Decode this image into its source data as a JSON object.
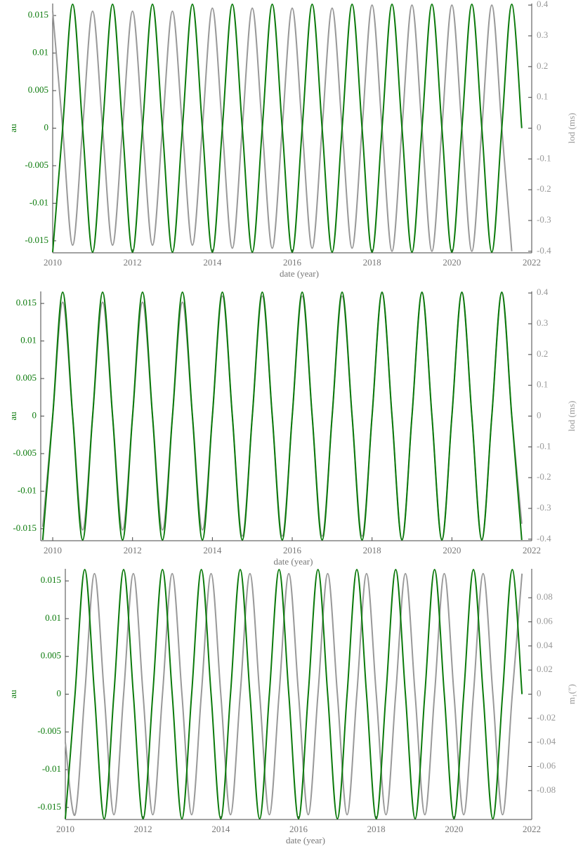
{
  "chart_data": [
    {
      "type": "line",
      "xlabel": "date (year)",
      "ylabel": "au",
      "y2label": "lod (ms)",
      "xlim": [
        2010,
        2022
      ],
      "xticks": [
        2010,
        2012,
        2014,
        2016,
        2018,
        2020,
        2022
      ],
      "ylim": [
        -0.0166,
        0.0166
      ],
      "yticks": [
        -0.015,
        -0.01,
        -0.005,
        0,
        0.005,
        0.01,
        0.015
      ],
      "y2lim": [
        -0.405,
        0.405
      ],
      "y2ticks": [
        -0.4,
        -0.3,
        -0.2,
        -0.1,
        0,
        0.1,
        0.2,
        0.3,
        0.4
      ],
      "x": [
        2010,
        2010.25,
        2010.5,
        2010.75,
        2011,
        2011.25,
        2011.5,
        2011.75,
        2012,
        2012.25,
        2012.5,
        2012.75,
        2013,
        2013.25,
        2013.5,
        2013.75,
        2014,
        2014.25,
        2014.5,
        2014.75,
        2015,
        2015.25,
        2015.5,
        2015.75,
        2016,
        2016.25,
        2016.5,
        2016.75,
        2017,
        2017.25,
        2017.5,
        2017.75,
        2018,
        2018.25,
        2018.5,
        2018.75,
        2019,
        2019.25,
        2019.5,
        2019.75,
        2020,
        2020.25,
        2020.5,
        2020.75,
        2021,
        2021.25,
        2021.5,
        2021.75
      ],
      "series": [
        {
          "color": "#0b7a0b",
          "values": [
            -0.0165,
            0,
            0.0165,
            0,
            -0.0165,
            0,
            0.0165,
            0,
            -0.0165,
            0,
            0.0165,
            0,
            -0.0165,
            0,
            0.0165,
            0,
            -0.0165,
            0,
            0.0165,
            0,
            -0.0165,
            0,
            0.0165,
            0,
            -0.0165,
            0,
            0.0165,
            0,
            -0.0165,
            0,
            0.0165,
            0,
            -0.0165,
            0,
            0.0165,
            0,
            -0.0165,
            0,
            0.0165,
            0,
            -0.0165,
            0,
            0.0165,
            0,
            -0.0165,
            0,
            0.0165,
            0
          ]
        },
        {
          "color": "#999999",
          "axis": "y2",
          "values": [
            0.38,
            0,
            -0.38,
            0,
            0.38,
            0,
            -0.38,
            0,
            0.38,
            0,
            -0.38,
            0,
            0.38,
            0,
            -0.38,
            0,
            0.39,
            0,
            -0.39,
            0,
            0.39,
            0,
            -0.39,
            0,
            0.39,
            0,
            -0.39,
            0,
            0.39,
            0,
            -0.39,
            0,
            0.4,
            0,
            -0.4,
            0,
            0.4,
            0,
            -0.4,
            0,
            0.4,
            0,
            -0.4,
            0,
            0.4,
            0,
            -0.4,
            null
          ]
        }
      ]
    },
    {
      "type": "line",
      "xlabel": "date (year)",
      "ylabel": "au",
      "y2label": "lod (ms)",
      "xlim": [
        2009.7,
        2022
      ],
      "xticks": [
        2010,
        2012,
        2014,
        2016,
        2018,
        2020,
        2022
      ],
      "ylim": [
        -0.0166,
        0.0166
      ],
      "yticks": [
        -0.015,
        -0.01,
        -0.005,
        0,
        0.005,
        0.01,
        0.015
      ],
      "y2lim": [
        -0.405,
        0.405
      ],
      "y2ticks": [
        -0.4,
        -0.3,
        -0.2,
        -0.1,
        0,
        0.1,
        0.2,
        0.3,
        0.4
      ],
      "x": [
        2009.75,
        2010,
        2010.25,
        2010.5,
        2010.75,
        2011,
        2011.25,
        2011.5,
        2011.75,
        2012,
        2012.25,
        2012.5,
        2012.75,
        2013,
        2013.25,
        2013.5,
        2013.75,
        2014,
        2014.25,
        2014.5,
        2014.75,
        2015,
        2015.25,
        2015.5,
        2015.75,
        2016,
        2016.25,
        2016.5,
        2016.75,
        2017,
        2017.25,
        2017.5,
        2017.75,
        2018,
        2018.25,
        2018.5,
        2018.75,
        2019,
        2019.25,
        2019.5,
        2019.75,
        2020,
        2020.25,
        2020.5,
        2020.75,
        2021,
        2021.25,
        2021.5,
        2021.75
      ],
      "series": [
        {
          "color": "#0b7a0b",
          "values": [
            -0.0165,
            0,
            0.0165,
            0,
            -0.0165,
            0,
            0.0165,
            0,
            -0.0165,
            0,
            0.0165,
            0,
            -0.0165,
            0,
            0.0165,
            0,
            -0.0165,
            0,
            0.0165,
            0,
            -0.0165,
            0,
            0.0165,
            0,
            -0.0165,
            0,
            0.0165,
            0,
            -0.0165,
            0,
            0.0165,
            0,
            -0.0165,
            0,
            0.0165,
            0,
            -0.0165,
            0,
            0.0165,
            0,
            -0.0165,
            0,
            0.0165,
            0,
            -0.0165,
            0,
            0.0165,
            0,
            -0.0165
          ]
        },
        {
          "color": "#999999",
          "axis": "y2",
          "values": [
            -0.36,
            0,
            0.37,
            0,
            -0.37,
            0,
            0.37,
            0,
            -0.37,
            0,
            0.37,
            0,
            -0.37,
            0,
            0.37,
            0,
            -0.37,
            0,
            0.39,
            0,
            -0.39,
            0,
            0.39,
            0,
            -0.39,
            0,
            0.39,
            0,
            -0.39,
            0,
            0.39,
            0,
            -0.39,
            0,
            0.4,
            0,
            -0.4,
            0,
            0.4,
            0,
            -0.4,
            0,
            0.4,
            0,
            -0.4,
            0,
            0.4,
            0,
            -0.35
          ]
        }
      ]
    },
    {
      "type": "line",
      "xlabel": "date (year)",
      "ylabel": "au",
      "y2label": "m₁(″)",
      "xlim": [
        2010,
        2022
      ],
      "xticks": [
        2010,
        2012,
        2014,
        2016,
        2018,
        2020,
        2022
      ],
      "ylim": [
        -0.0166,
        0.0166
      ],
      "yticks": [
        -0.015,
        -0.01,
        -0.005,
        0,
        0.005,
        0.01,
        0.015
      ],
      "y2lim": [
        -0.104,
        0.104
      ],
      "y2ticks": [
        -0.08,
        -0.06,
        -0.04,
        -0.02,
        0,
        0.02,
        0.04,
        0.06,
        0.08
      ],
      "x": [
        2010,
        2010.25,
        2010.5,
        2010.75,
        2011,
        2011.25,
        2011.5,
        2011.75,
        2012,
        2012.25,
        2012.5,
        2012.75,
        2013,
        2013.25,
        2013.5,
        2013.75,
        2014,
        2014.25,
        2014.5,
        2014.75,
        2015,
        2015.25,
        2015.5,
        2015.75,
        2016,
        2016.25,
        2016.5,
        2016.75,
        2017,
        2017.25,
        2017.5,
        2017.75,
        2018,
        2018.25,
        2018.5,
        2018.75,
        2019,
        2019.25,
        2019.5,
        2019.75,
        2020,
        2020.25,
        2020.5,
        2020.75,
        2021,
        2021.25,
        2021.5,
        2021.75
      ],
      "series": [
        {
          "color": "#0b7a0b",
          "values": [
            -0.0165,
            0,
            0.0165,
            0,
            -0.0165,
            0,
            0.0165,
            0,
            -0.0165,
            0,
            0.0165,
            0,
            -0.0165,
            0,
            0.0165,
            0,
            -0.0165,
            0,
            0.0165,
            0,
            -0.0165,
            0,
            0.0165,
            0,
            -0.0165,
            0,
            0.0165,
            0,
            -0.0165,
            0,
            0.0165,
            0,
            -0.0165,
            0,
            0.0165,
            0,
            -0.0165,
            0,
            0.0165,
            0,
            -0.0165,
            0,
            0.0165,
            0,
            -0.0165,
            0,
            0.0165,
            0
          ]
        },
        {
          "color": "#999999",
          "axis": "y2",
          "values": [
            -0.04,
            -0.1,
            0,
            0.1,
            0,
            -0.1,
            0,
            0.1,
            0,
            -0.1,
            0,
            0.1,
            0,
            -0.1,
            0,
            0.1,
            0,
            -0.1,
            0,
            0.1,
            0,
            -0.1,
            0,
            0.1,
            0,
            -0.1,
            0,
            0.1,
            0,
            -0.1,
            0,
            0.1,
            0,
            -0.1,
            0,
            0.1,
            0,
            -0.1,
            0,
            0.1,
            0,
            -0.1,
            0,
            0.1,
            0,
            -0.1,
            0,
            0.1
          ]
        }
      ]
    }
  ]
}
